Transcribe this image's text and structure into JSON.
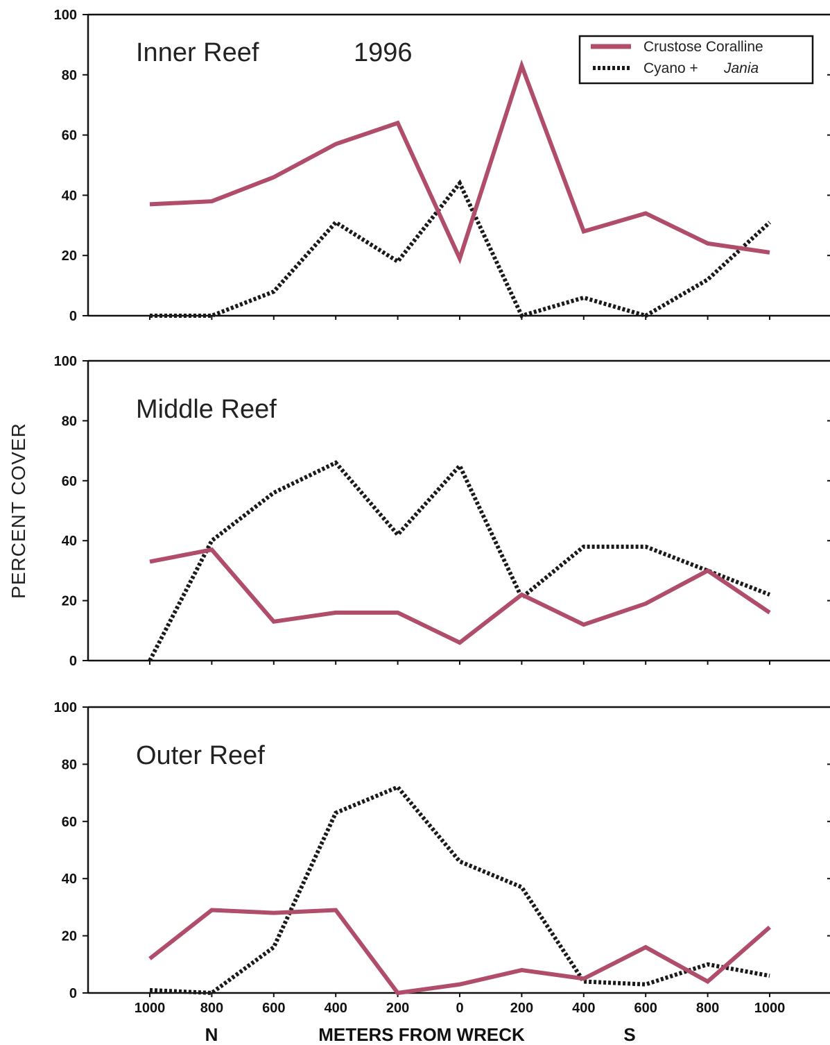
{
  "chart_data": [
    {
      "type": "line",
      "title": "Inner Reef",
      "year_label": "1996",
      "x": [
        "1000",
        "800",
        "600",
        "400",
        "200",
        "0",
        "200",
        "400",
        "600",
        "800",
        "1000"
      ],
      "ylim": [
        0,
        100
      ],
      "yticks": [
        0,
        20,
        40,
        60,
        80,
        100
      ],
      "series": [
        {
          "name": "Crustose Coralline",
          "color": "#b04d6a",
          "style": "solid",
          "values": [
            37,
            38,
            46,
            57,
            64,
            19,
            83,
            28,
            34,
            24,
            21
          ]
        },
        {
          "name": "Cyano + Jania",
          "color": "#1a1a1a",
          "style": "dotted",
          "values": [
            0,
            0,
            8,
            31,
            18,
            44,
            0,
            6,
            0,
            12,
            31
          ]
        }
      ],
      "legend": "top-right"
    },
    {
      "type": "line",
      "title": "Middle Reef",
      "x": [
        "1000",
        "800",
        "600",
        "400",
        "200",
        "0",
        "200",
        "400",
        "600",
        "800",
        "1000"
      ],
      "ylim": [
        0,
        100
      ],
      "yticks": [
        0,
        20,
        40,
        60,
        80,
        100
      ],
      "series": [
        {
          "name": "Crustose Coralline",
          "color": "#b04d6a",
          "style": "solid",
          "values": [
            33,
            37,
            13,
            16,
            16,
            6,
            22,
            12,
            19,
            30,
            16
          ]
        },
        {
          "name": "Cyano + Jania",
          "color": "#1a1a1a",
          "style": "dotted",
          "values": [
            0,
            40,
            56,
            66,
            42,
            65,
            21,
            38,
            38,
            30,
            22
          ]
        }
      ]
    },
    {
      "type": "line",
      "title": "Outer Reef",
      "x": [
        "1000",
        "800",
        "600",
        "400",
        "200",
        "0",
        "200",
        "400",
        "600",
        "800",
        "1000"
      ],
      "ylim": [
        0,
        100
      ],
      "yticks": [
        0,
        20,
        40,
        60,
        80,
        100
      ],
      "series": [
        {
          "name": "Crustose Coralline",
          "color": "#b04d6a",
          "style": "solid",
          "values": [
            12,
            29,
            28,
            29,
            0,
            3,
            8,
            5,
            16,
            4,
            23
          ]
        },
        {
          "name": "Cyano + Jania",
          "color": "#1a1a1a",
          "style": "dotted",
          "values": [
            1,
            0,
            16,
            63,
            72,
            46,
            37,
            4,
            3,
            10,
            6
          ]
        }
      ]
    }
  ],
  "legend": {
    "coralline_label": "Crustose Coralline",
    "cyano_label": "Cyano +",
    "jania_label": "Jania"
  },
  "ylabel": "PERCENT COVER",
  "xlabel": "METERS FROM WRECK",
  "north_label": "N",
  "south_label": "S"
}
